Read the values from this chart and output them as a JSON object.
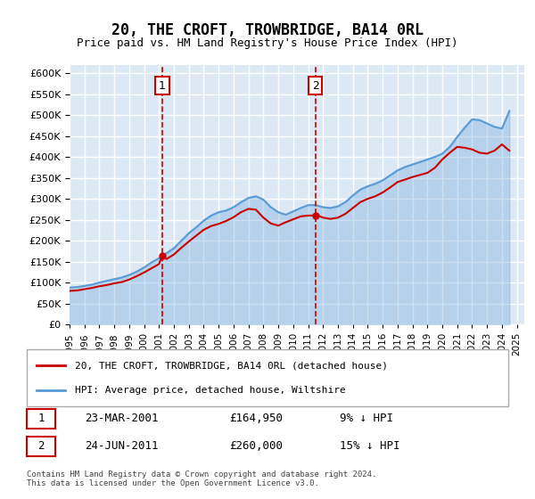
{
  "title": "20, THE CROFT, TROWBRIDGE, BA14 0RL",
  "subtitle": "Price paid vs. HM Land Registry's House Price Index (HPI)",
  "ylabel_ticks": [
    "£0",
    "£50K",
    "£100K",
    "£150K",
    "£200K",
    "£250K",
    "£300K",
    "£350K",
    "£400K",
    "£450K",
    "£500K",
    "£550K",
    "£600K"
  ],
  "ylim": [
    0,
    620000
  ],
  "yticks": [
    0,
    50000,
    100000,
    150000,
    200000,
    250000,
    300000,
    350000,
    400000,
    450000,
    500000,
    550000,
    600000
  ],
  "legend_line1": "20, THE CROFT, TROWBRIDGE, BA14 0RL (detached house)",
  "legend_line2": "HPI: Average price, detached house, Wiltshire",
  "sale1_label": "1",
  "sale1_date": "23-MAR-2001",
  "sale1_price": "£164,950",
  "sale1_note": "9% ↓ HPI",
  "sale2_label": "2",
  "sale2_date": "24-JUN-2011",
  "sale2_price": "£260,000",
  "sale2_note": "15% ↓ HPI",
  "footnote": "Contains HM Land Registry data © Crown copyright and database right 2024.\nThis data is licensed under the Open Government Licence v3.0.",
  "line_color_red": "#cc0000",
  "line_color_blue": "#5b9bd5",
  "vline_color": "#cc0000",
  "bg_color": "#dce9f5",
  "grid_color": "#ffffff",
  "sale1_x": 2001.22,
  "sale1_y": 164950,
  "sale2_x": 2011.48,
  "sale2_y": 260000,
  "hpi_years": [
    1995,
    1995.5,
    1996,
    1996.5,
    1997,
    1997.5,
    1998,
    1998.5,
    1999,
    1999.5,
    2000,
    2000.5,
    2001,
    2001.5,
    2002,
    2002.5,
    2003,
    2003.5,
    2004,
    2004.5,
    2005,
    2005.5,
    2006,
    2006.5,
    2007,
    2007.5,
    2008,
    2008.5,
    2009,
    2009.5,
    2010,
    2010.5,
    2011,
    2011.5,
    2012,
    2012.5,
    2013,
    2013.5,
    2014,
    2014.5,
    2015,
    2015.5,
    2016,
    2016.5,
    2017,
    2017.5,
    2018,
    2018.5,
    2019,
    2019.5,
    2020,
    2020.5,
    2021,
    2021.5,
    2022,
    2022.5,
    2023,
    2023.5,
    2024,
    2024.5
  ],
  "hpi_values": [
    88000,
    89000,
    92000,
    95000,
    100000,
    104000,
    108000,
    112000,
    118000,
    126000,
    136000,
    148000,
    158000,
    170000,
    182000,
    200000,
    218000,
    232000,
    248000,
    260000,
    268000,
    272000,
    280000,
    292000,
    302000,
    306000,
    298000,
    280000,
    268000,
    262000,
    270000,
    278000,
    285000,
    285000,
    280000,
    278000,
    282000,
    292000,
    308000,
    322000,
    330000,
    336000,
    344000,
    356000,
    368000,
    376000,
    382000,
    388000,
    394000,
    400000,
    408000,
    424000,
    448000,
    470000,
    490000,
    488000,
    480000,
    472000,
    468000,
    510000
  ],
  "price_years": [
    1995,
    1995.5,
    1996,
    1996.5,
    1997,
    1997.5,
    1998,
    1998.5,
    1999,
    1999.5,
    2000,
    2000.5,
    2001,
    2001.22,
    2001.5,
    2002,
    2002.5,
    2003,
    2003.5,
    2004,
    2004.5,
    2005,
    2005.5,
    2006,
    2006.5,
    2007,
    2007.5,
    2008,
    2008.5,
    2009,
    2009.5,
    2010,
    2010.5,
    2011,
    2011.48,
    2011.5,
    2012,
    2012.5,
    2013,
    2013.5,
    2014,
    2014.5,
    2015,
    2015.5,
    2016,
    2016.5,
    2017,
    2017.5,
    2018,
    2018.5,
    2019,
    2019.5,
    2020,
    2020.5,
    2021,
    2021.5,
    2022,
    2022.5,
    2023,
    2023.5,
    2024,
    2024.5
  ],
  "price_values": [
    80000,
    81000,
    84000,
    87000,
    91000,
    94000,
    98000,
    101000,
    107000,
    115000,
    124000,
    134000,
    144000,
    164950,
    156000,
    167000,
    183000,
    198000,
    212000,
    226000,
    235000,
    240000,
    247000,
    256000,
    268000,
    276000,
    274000,
    255000,
    241000,
    236000,
    244000,
    251000,
    258000,
    260000,
    260000,
    262000,
    255000,
    252000,
    255000,
    264000,
    278000,
    292000,
    300000,
    306000,
    315000,
    327000,
    340000,
    346000,
    352000,
    357000,
    362000,
    374000,
    394000,
    410000,
    424000,
    422000,
    418000,
    410000,
    408000,
    415000,
    430000,
    415000
  ],
  "xlim": [
    1995,
    2025.5
  ],
  "xtick_years": [
    1995,
    1996,
    1997,
    1998,
    1999,
    2000,
    2001,
    2002,
    2003,
    2004,
    2005,
    2006,
    2007,
    2008,
    2009,
    2010,
    2011,
    2012,
    2013,
    2014,
    2015,
    2016,
    2017,
    2018,
    2019,
    2020,
    2021,
    2022,
    2023,
    2024,
    2025
  ]
}
